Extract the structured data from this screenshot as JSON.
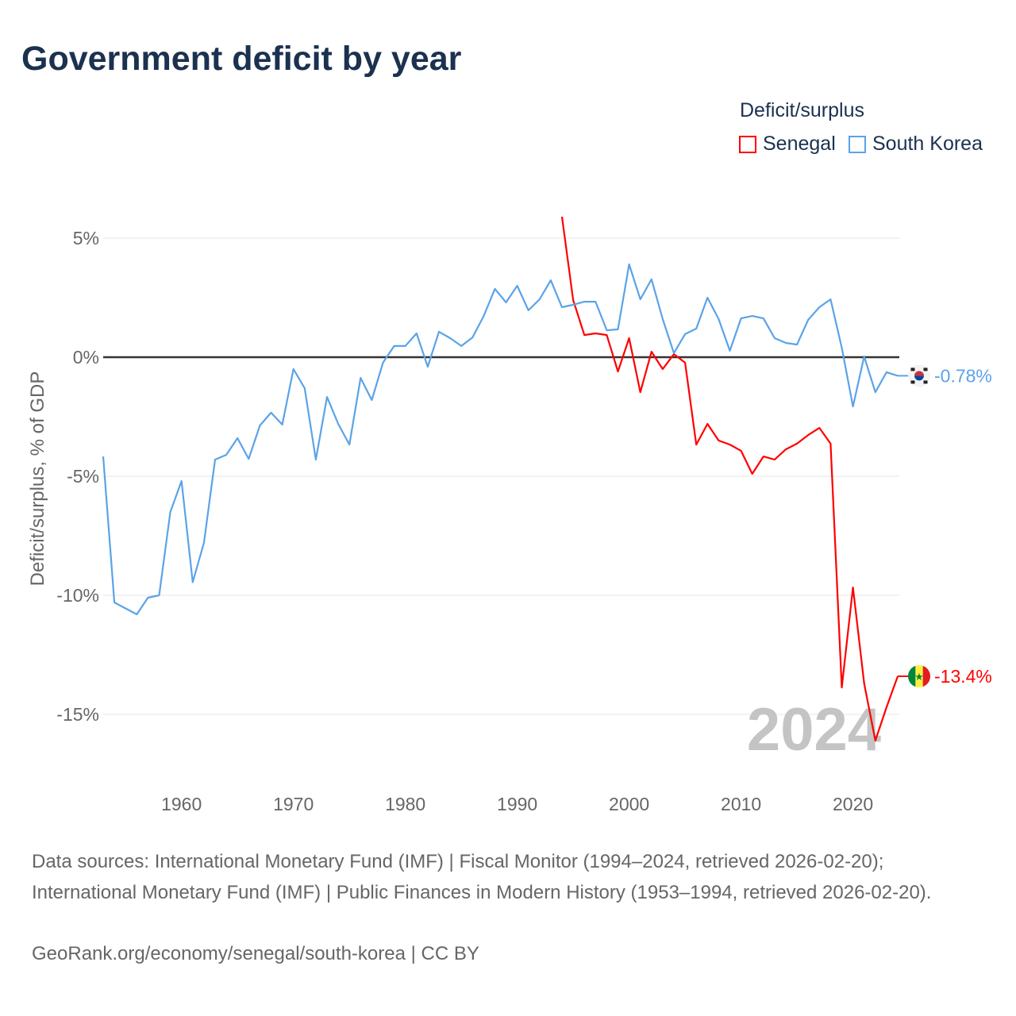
{
  "title": "Government deficit by year",
  "legend": {
    "title": "Deficit/surplus",
    "items": [
      {
        "label": "Senegal",
        "color": "#ff0000"
      },
      {
        "label": "South Korea",
        "color": "#5ba3e8"
      }
    ]
  },
  "year_watermark": "2024",
  "footer": {
    "sources": "Data sources: International Monetary Fund (IMF) | Fiscal Monitor (1994–2024, retrieved 2026-02-20); International Monetary Fund (IMF) | Public Finances in Modern History (1953–1994, retrieved 2026-02-20).",
    "credit": "GeoRank.org/economy/senegal/south-korea | CC BY"
  },
  "chart_data": {
    "type": "line",
    "title": "Government deficit by year",
    "xlabel": "",
    "ylabel": "Deficit/surplus, % of GDP",
    "xlim": [
      1953,
      2024
    ],
    "ylim": [
      -17,
      6
    ],
    "xticks": [
      1960,
      1970,
      1980,
      1990,
      2000,
      2010,
      2020
    ],
    "xtick_labels": [
      "1960",
      "1970",
      "1980",
      "1990",
      "2000",
      "2010",
      "2020"
    ],
    "yticks": [
      5,
      0,
      -5,
      -10,
      -15
    ],
    "ytick_labels": [
      "5%",
      "0%",
      "-5%",
      "-10%",
      "-15%"
    ],
    "grid": true,
    "legend_position": "top-right",
    "series": [
      {
        "name": "South Korea",
        "color": "#5ba3e8",
        "end_label": "-0.78%",
        "start_year": 1953,
        "values": [
          -4.17,
          -10.3,
          -10.55,
          -10.8,
          -10.1,
          -10.0,
          -6.5,
          -5.2,
          -9.45,
          -7.8,
          -4.3,
          -4.1,
          -3.4,
          -4.27,
          -2.87,
          -2.33,
          -2.83,
          -0.5,
          -1.3,
          -4.3,
          -1.67,
          -2.8,
          -3.67,
          -0.87,
          -1.8,
          -0.23,
          0.47,
          0.47,
          1.0,
          -0.4,
          1.07,
          0.8,
          0.47,
          0.83,
          1.73,
          2.87,
          2.3,
          3.0,
          1.97,
          2.43,
          3.23,
          2.1,
          2.2,
          2.33,
          2.33,
          1.13,
          1.17,
          3.9,
          2.43,
          3.27,
          1.6,
          0.17,
          0.97,
          1.2,
          2.5,
          1.6,
          0.27,
          1.63,
          1.73,
          1.63,
          0.8,
          0.6,
          0.53,
          1.57,
          2.1,
          2.43,
          0.4,
          -2.07,
          0.03,
          -1.47,
          -0.63,
          -0.78
        ]
      },
      {
        "name": "Senegal",
        "color": "#ff0000",
        "end_label": "-13.4%",
        "start_year": 1994,
        "values": [
          5.9,
          2.4,
          0.93,
          1.0,
          0.93,
          -0.6,
          0.8,
          -1.47,
          0.23,
          -0.5,
          0.13,
          -0.23,
          -3.67,
          -2.8,
          -3.5,
          -3.67,
          -3.93,
          -4.9,
          -4.17,
          -4.3,
          -3.87,
          -3.63,
          -3.27,
          -2.97,
          -3.63,
          -13.87,
          -9.67,
          -13.7,
          -16.1,
          -14.7,
          -13.4
        ]
      }
    ]
  }
}
